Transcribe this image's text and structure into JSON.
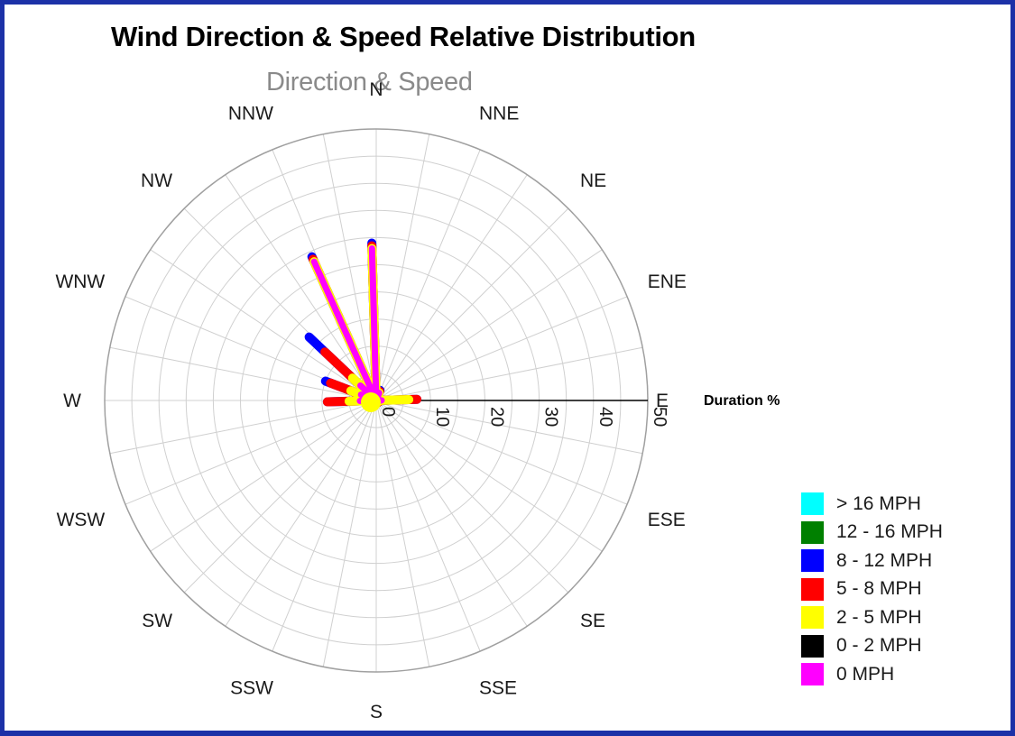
{
  "chart_data": {
    "type": "polar",
    "title": "Wind Direction & Speed Relative Distribution",
    "subtitle": "Direction & Speed",
    "radial_axis_label": "Duration %",
    "radial_ticks": [
      "0",
      "10",
      "20",
      "30",
      "40",
      "50"
    ],
    "rlim": [
      0,
      50
    ],
    "grid": true,
    "legend_position": "bottom-right",
    "directions": [
      "N",
      "NNE",
      "NE",
      "ENE",
      "E",
      "ESE",
      "SE",
      "SSE",
      "S",
      "SSW",
      "SW",
      "WSW",
      "W",
      "WNW",
      "NW",
      "NNW"
    ],
    "series": [
      {
        "name": "> 16 MPH",
        "color": "#00ffff",
        "values": [
          0,
          0,
          0,
          0,
          0,
          0,
          0,
          0,
          0,
          0,
          0,
          0,
          0,
          0,
          0,
          0
        ]
      },
      {
        "name": "12 - 16 MPH",
        "color": "#008000",
        "values": [
          0,
          0,
          0,
          0,
          0,
          0,
          0,
          0,
          0,
          0,
          0,
          0,
          0,
          0,
          0,
          0
        ]
      },
      {
        "name": "8 - 12 MPH",
        "color": "#0000ff",
        "values": [
          29,
          2,
          0.4,
          0.3,
          7.5,
          0.6,
          0.5,
          0.5,
          0.3,
          0.3,
          0.3,
          0.5,
          9,
          10,
          17,
          29
        ]
      },
      {
        "name": "5 - 8 MPH",
        "color": "#ff0000",
        "values": [
          28.5,
          1.8,
          0.4,
          0.3,
          7.5,
          0.6,
          0.5,
          0.5,
          0.3,
          0.3,
          0.3,
          0.5,
          9,
          9,
          13,
          28.5
        ]
      },
      {
        "name": "2 - 5 MPH",
        "color": "#ffff00",
        "values": [
          28,
          1.5,
          0.3,
          0.2,
          6,
          0.5,
          0.4,
          0.4,
          0.2,
          0.2,
          0.2,
          0.4,
          5,
          5,
          6,
          28
        ]
      },
      {
        "name": "0 - 2 MPH",
        "color": "#000000",
        "values": [
          0,
          0,
          0,
          0,
          0,
          0,
          0,
          0,
          0,
          0,
          0,
          0,
          0,
          0,
          0,
          0
        ]
      },
      {
        "name": "0 MPH",
        "color": "#ff00ff",
        "values": [
          28,
          1.5,
          0.3,
          0.2,
          1,
          0.5,
          0.4,
          0.4,
          0.2,
          0.2,
          0.2,
          0.4,
          3,
          3,
          4,
          28
        ]
      }
    ]
  },
  "legend": {
    "items": [
      {
        "label": "> 16 MPH",
        "color": "#00ffff"
      },
      {
        "label": "12 - 16 MPH",
        "color": "#008000"
      },
      {
        "label": "8 - 12 MPH",
        "color": "#0000ff"
      },
      {
        "label": "5 - 8 MPH",
        "color": "#ff0000"
      },
      {
        "label": "2 - 5 MPH",
        "color": "#ffff00"
      },
      {
        "label": "0 - 2 MPH",
        "color": "#000000"
      },
      {
        "label": "0 MPH",
        "color": "#ff00ff"
      }
    ]
  },
  "colors": {
    "border": "#1c31a7",
    "grid": "#d0d0d0",
    "outer_circle": "#a0a0a0",
    "subtitle": "#8a8a8a"
  }
}
